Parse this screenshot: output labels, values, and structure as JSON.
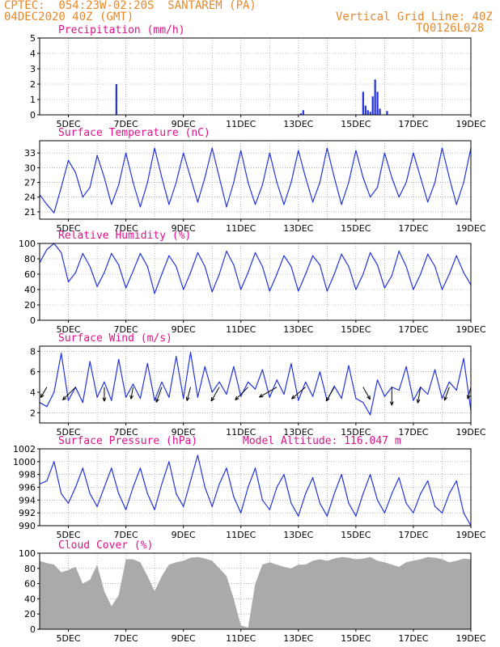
{
  "header": {
    "line1": "CPTEC:  054:23W-02:20S  SANTAREM (PA)",
    "line2": "04DEC2020 40Z (GMT)",
    "grid_note": "Vertical Grid Line: 40Z",
    "run_id": "TQ0126L028"
  },
  "colors": {
    "header": "#e8872a",
    "title": "#e0108a",
    "series": "#2233dd",
    "cloud": "#aaaaaa",
    "grid": "#888888"
  },
  "x_tick_labels": [
    "5DEC",
    "7DEC",
    "9DEC",
    "11DEC",
    "13DEC",
    "15DEC",
    "17DEC",
    "19DEC"
  ],
  "chart_data": [
    {
      "type": "bar",
      "title": "Precipitation (mm/h)",
      "ylim": [
        0,
        5
      ],
      "yticks": [
        0,
        1,
        2,
        3,
        4,
        5
      ],
      "x": [
        "06DEC 16Z",
        "13DEC 02Z",
        "13DEC 04Z",
        "15DEC 06Z",
        "15DEC 08Z",
        "15DEC 10Z",
        "15DEC 12Z",
        "15DEC 14Z",
        "15DEC 16Z",
        "15DEC 18Z",
        "15DEC 20Z",
        "16DEC 02Z"
      ],
      "values": [
        2.0,
        0.1,
        0.3,
        1.5,
        0.6,
        0.3,
        0.2,
        1.2,
        2.3,
        1.5,
        0.4,
        0.25
      ],
      "grid": true
    },
    {
      "type": "line",
      "title": "Surface Temperature (nC)",
      "ylim": [
        19.5,
        35.5
      ],
      "yticks": [
        21,
        24,
        27,
        30,
        33
      ],
      "x": [
        "04DEC 00Z",
        "04DEC 06Z",
        "04DEC 12Z",
        "04DEC 18Z",
        "05DEC 00Z",
        "05DEC 06Z",
        "05DEC 12Z",
        "05DEC 18Z",
        "06DEC 00Z",
        "06DEC 06Z",
        "06DEC 12Z",
        "06DEC 18Z",
        "07DEC 00Z",
        "07DEC 06Z",
        "07DEC 12Z",
        "07DEC 18Z",
        "08DEC 00Z",
        "08DEC 06Z",
        "08DEC 12Z",
        "08DEC 18Z",
        "09DEC 00Z",
        "09DEC 06Z",
        "09DEC 12Z",
        "09DEC 18Z",
        "10DEC 00Z",
        "10DEC 06Z",
        "10DEC 12Z",
        "10DEC 18Z",
        "11DEC 00Z",
        "11DEC 06Z",
        "11DEC 12Z",
        "11DEC 18Z",
        "12DEC 00Z",
        "12DEC 06Z",
        "12DEC 12Z",
        "12DEC 18Z",
        "13DEC 00Z",
        "13DEC 06Z",
        "13DEC 12Z",
        "13DEC 18Z",
        "14DEC 00Z",
        "14DEC 06Z",
        "14DEC 12Z",
        "14DEC 18Z",
        "15DEC 00Z",
        "15DEC 06Z",
        "15DEC 12Z",
        "15DEC 18Z",
        "16DEC 00Z",
        "16DEC 06Z",
        "16DEC 12Z",
        "16DEC 18Z",
        "17DEC 00Z",
        "17DEC 06Z",
        "17DEC 12Z",
        "17DEC 18Z",
        "18DEC 00Z",
        "18DEC 06Z",
        "18DEC 12Z",
        "18DEC 18Z",
        "19DEC 00Z"
      ],
      "values": [
        24.5,
        22.5,
        20.8,
        26,
        31.5,
        29,
        24,
        26,
        32.5,
        28,
        22.5,
        26.5,
        33,
        27,
        22,
        27,
        34,
        28,
        22.5,
        27,
        33,
        28,
        23,
        28,
        34,
        28,
        22,
        27,
        33.5,
        27,
        22.5,
        26.5,
        33,
        27,
        22.5,
        27,
        33.5,
        28,
        23,
        27,
        34,
        28,
        22.5,
        27,
        33.5,
        28,
        24,
        26,
        33,
        28,
        24,
        27,
        33,
        28,
        23,
        27,
        34,
        28,
        22.5,
        27,
        34
      ],
      "grid": true
    },
    {
      "type": "line",
      "title": "Relative Humidity (%)",
      "ylim": [
        0,
        100
      ],
      "yticks": [
        0,
        20,
        40,
        60,
        80,
        100
      ],
      "x": [
        "04DEC 00Z",
        "04DEC 06Z",
        "04DEC 12Z",
        "04DEC 18Z",
        "05DEC 00Z",
        "05DEC 06Z",
        "05DEC 12Z",
        "05DEC 18Z",
        "06DEC 00Z",
        "06DEC 06Z",
        "06DEC 12Z",
        "06DEC 18Z",
        "07DEC 00Z",
        "07DEC 06Z",
        "07DEC 12Z",
        "07DEC 18Z",
        "08DEC 00Z",
        "08DEC 06Z",
        "08DEC 12Z",
        "08DEC 18Z",
        "09DEC 00Z",
        "09DEC 06Z",
        "09DEC 12Z",
        "09DEC 18Z",
        "10DEC 00Z",
        "10DEC 06Z",
        "10DEC 12Z",
        "10DEC 18Z",
        "11DEC 00Z",
        "11DEC 06Z",
        "11DEC 12Z",
        "11DEC 18Z",
        "12DEC 00Z",
        "12DEC 06Z",
        "12DEC 12Z",
        "12DEC 18Z",
        "13DEC 00Z",
        "13DEC 06Z",
        "13DEC 12Z",
        "13DEC 18Z",
        "14DEC 00Z",
        "14DEC 06Z",
        "14DEC 12Z",
        "14DEC 18Z",
        "15DEC 00Z",
        "15DEC 06Z",
        "15DEC 12Z",
        "15DEC 18Z",
        "16DEC 00Z",
        "16DEC 06Z",
        "16DEC 12Z",
        "16DEC 18Z",
        "17DEC 00Z",
        "17DEC 06Z",
        "17DEC 12Z",
        "17DEC 18Z",
        "18DEC 00Z",
        "18DEC 06Z",
        "18DEC 12Z",
        "18DEC 18Z",
        "19DEC 00Z"
      ],
      "values": [
        75,
        92,
        100,
        88,
        50,
        62,
        87,
        70,
        44,
        62,
        87,
        72,
        42,
        64,
        87,
        70,
        35,
        60,
        84,
        70,
        40,
        62,
        88,
        70,
        37,
        60,
        90,
        72,
        40,
        62,
        88,
        70,
        38,
        60,
        84,
        70,
        38,
        60,
        84,
        72,
        38,
        60,
        86,
        70,
        40,
        60,
        88,
        72,
        42,
        58,
        90,
        70,
        40,
        60,
        86,
        70,
        40,
        60,
        84,
        62,
        46
      ],
      "grid": true
    },
    {
      "type": "line",
      "title": "Surface Wind (m/s)",
      "ylim": [
        1,
        8.5
      ],
      "yticks": [
        2,
        4,
        6,
        8
      ],
      "x": [
        "04DEC 00Z",
        "04DEC 06Z",
        "04DEC 12Z",
        "04DEC 18Z",
        "05DEC 00Z",
        "05DEC 06Z",
        "05DEC 12Z",
        "05DEC 18Z",
        "06DEC 00Z",
        "06DEC 06Z",
        "06DEC 12Z",
        "06DEC 18Z",
        "07DEC 00Z",
        "07DEC 06Z",
        "07DEC 12Z",
        "07DEC 18Z",
        "08DEC 00Z",
        "08DEC 06Z",
        "08DEC 12Z",
        "08DEC 18Z",
        "09DEC 00Z",
        "09DEC 06Z",
        "09DEC 12Z",
        "09DEC 18Z",
        "10DEC 00Z",
        "10DEC 06Z",
        "10DEC 12Z",
        "10DEC 18Z",
        "11DEC 00Z",
        "11DEC 06Z",
        "11DEC 12Z",
        "11DEC 18Z",
        "12DEC 00Z",
        "12DEC 06Z",
        "12DEC 12Z",
        "12DEC 18Z",
        "13DEC 00Z",
        "13DEC 06Z",
        "13DEC 12Z",
        "13DEC 18Z",
        "14DEC 00Z",
        "14DEC 06Z",
        "14DEC 12Z",
        "14DEC 18Z",
        "15DEC 00Z",
        "15DEC 06Z",
        "15DEC 12Z",
        "15DEC 18Z",
        "16DEC 00Z",
        "16DEC 06Z",
        "16DEC 12Z",
        "16DEC 18Z",
        "17DEC 00Z",
        "17DEC 06Z",
        "17DEC 12Z",
        "17DEC 18Z",
        "18DEC 00Z",
        "18DEC 06Z",
        "18DEC 12Z",
        "18DEC 18Z",
        "19DEC 00Z"
      ],
      "values": [
        3,
        2.6,
        4,
        7.8,
        3.2,
        4.5,
        3,
        7,
        3.5,
        5,
        3.2,
        7.2,
        3.5,
        4.8,
        3.4,
        6.8,
        3.2,
        5,
        3.5,
        7.5,
        3.4,
        7.9,
        3.5,
        6.5,
        4,
        5,
        3.8,
        6.5,
        3.6,
        5,
        4.3,
        6.2,
        3.5,
        5.2,
        3.8,
        6.8,
        3.2,
        5,
        3.6,
        6,
        3.2,
        4.6,
        3.4,
        6.6,
        3.4,
        3,
        1.8,
        5.2,
        3.6,
        4.5,
        4.2,
        6.5,
        3.2,
        4.5,
        3.8,
        6.2,
        3.4,
        5,
        4.2,
        7.3,
        2.2
      ],
      "wind_vectors": {
        "x": [
          "04DEC 06Z",
          "05DEC 06Z",
          "06DEC 06Z",
          "07DEC 06Z",
          "08DEC 06Z",
          "09DEC 06Z",
          "10DEC 06Z",
          "11DEC 06Z",
          "12DEC 06Z",
          "13DEC 06Z",
          "14DEC 06Z",
          "15DEC 06Z",
          "16DEC 06Z",
          "17DEC 06Z",
          "18DEC 06Z",
          "19DEC 00Z"
        ],
        "direction_deg": [
          60,
          45,
          90,
          80,
          70,
          75,
          60,
          45,
          30,
          40,
          60,
          120,
          90,
          80,
          70,
          75
        ],
        "speed": [
          3,
          4.5,
          3.5,
          3,
          4,
          3.5,
          4,
          4.5,
          5,
          4.5,
          4,
          3.5,
          4.5,
          4,
          3.5,
          3
        ]
      },
      "grid": true
    },
    {
      "type": "line",
      "title": "Surface Pressure (hPa)",
      "annotation": "Model Altitude: 116.047 m",
      "ylim": [
        990,
        1002
      ],
      "yticks": [
        990,
        992,
        994,
        996,
        998,
        1000,
        1002
      ],
      "x": [
        "04DEC 00Z",
        "04DEC 06Z",
        "04DEC 12Z",
        "04DEC 18Z",
        "05DEC 00Z",
        "05DEC 06Z",
        "05DEC 12Z",
        "05DEC 18Z",
        "06DEC 00Z",
        "06DEC 06Z",
        "06DEC 12Z",
        "06DEC 18Z",
        "07DEC 00Z",
        "07DEC 06Z",
        "07DEC 12Z",
        "07DEC 18Z",
        "08DEC 00Z",
        "08DEC 06Z",
        "08DEC 12Z",
        "08DEC 18Z",
        "09DEC 00Z",
        "09DEC 06Z",
        "09DEC 12Z",
        "09DEC 18Z",
        "10DEC 00Z",
        "10DEC 06Z",
        "10DEC 12Z",
        "10DEC 18Z",
        "11DEC 00Z",
        "11DEC 06Z",
        "11DEC 12Z",
        "11DEC 18Z",
        "12DEC 00Z",
        "12DEC 06Z",
        "12DEC 12Z",
        "12DEC 18Z",
        "13DEC 00Z",
        "13DEC 06Z",
        "13DEC 12Z",
        "13DEC 18Z",
        "14DEC 00Z",
        "14DEC 06Z",
        "14DEC 12Z",
        "14DEC 18Z",
        "15DEC 00Z",
        "15DEC 06Z",
        "15DEC 12Z",
        "15DEC 18Z",
        "16DEC 00Z",
        "16DEC 06Z",
        "16DEC 12Z",
        "16DEC 18Z",
        "17DEC 00Z",
        "17DEC 06Z",
        "17DEC 12Z",
        "17DEC 18Z",
        "18DEC 00Z",
        "18DEC 06Z",
        "18DEC 12Z",
        "18DEC 18Z",
        "19DEC 00Z"
      ],
      "values": [
        996.5,
        997,
        1000,
        995,
        993.5,
        996,
        999,
        995,
        993,
        996,
        999,
        995,
        992.5,
        996,
        999,
        995,
        992.5,
        996.5,
        1000,
        995,
        993,
        997,
        1001,
        996,
        993,
        996.5,
        999,
        994.5,
        992,
        996,
        999,
        994,
        992.5,
        996,
        998,
        993.5,
        991.5,
        995,
        997.5,
        993.5,
        991.5,
        995,
        998,
        993.5,
        991.5,
        995,
        998,
        994,
        992,
        995,
        997.5,
        993.5,
        992,
        995,
        997,
        993,
        992,
        995,
        997,
        992,
        990
      ],
      "grid": true
    },
    {
      "type": "area",
      "title": "Cloud Cover (%)",
      "ylim": [
        0,
        100
      ],
      "yticks": [
        0,
        20,
        40,
        60,
        80,
        100
      ],
      "x": [
        "04DEC 00Z",
        "04DEC 06Z",
        "04DEC 12Z",
        "04DEC 18Z",
        "05DEC 00Z",
        "05DEC 06Z",
        "05DEC 12Z",
        "05DEC 18Z",
        "06DEC 00Z",
        "06DEC 06Z",
        "06DEC 12Z",
        "06DEC 18Z",
        "07DEC 00Z",
        "07DEC 06Z",
        "07DEC 12Z",
        "07DEC 18Z",
        "08DEC 00Z",
        "08DEC 06Z",
        "08DEC 12Z",
        "08DEC 18Z",
        "09DEC 00Z",
        "09DEC 06Z",
        "09DEC 12Z",
        "09DEC 18Z",
        "10DEC 00Z",
        "10DEC 06Z",
        "10DEC 12Z",
        "10DEC 18Z",
        "11DEC 00Z",
        "11DEC 06Z",
        "11DEC 12Z",
        "11DEC 18Z",
        "12DEC 00Z",
        "12DEC 06Z",
        "12DEC 12Z",
        "12DEC 18Z",
        "13DEC 00Z",
        "13DEC 06Z",
        "13DEC 12Z",
        "13DEC 18Z",
        "14DEC 00Z",
        "14DEC 06Z",
        "14DEC 12Z",
        "14DEC 18Z",
        "15DEC 00Z",
        "15DEC 06Z",
        "15DEC 12Z",
        "15DEC 18Z",
        "16DEC 00Z",
        "16DEC 06Z",
        "16DEC 12Z",
        "16DEC 18Z",
        "17DEC 00Z",
        "17DEC 06Z",
        "17DEC 12Z",
        "17DEC 18Z",
        "18DEC 00Z",
        "18DEC 06Z",
        "18DEC 12Z",
        "18DEC 18Z",
        "19DEC 00Z"
      ],
      "values": [
        90,
        87,
        85,
        75,
        78,
        82,
        60,
        65,
        85,
        50,
        30,
        45,
        92,
        92,
        88,
        70,
        50,
        70,
        85,
        88,
        90,
        94,
        95,
        93,
        90,
        80,
        70,
        40,
        5,
        2,
        60,
        85,
        88,
        85,
        82,
        80,
        85,
        85,
        90,
        92,
        90,
        93,
        95,
        94,
        92,
        93,
        95,
        90,
        88,
        85,
        82,
        88,
        90,
        92,
        95,
        94,
        92,
        88,
        90,
        93,
        92
      ],
      "grid": true
    }
  ]
}
